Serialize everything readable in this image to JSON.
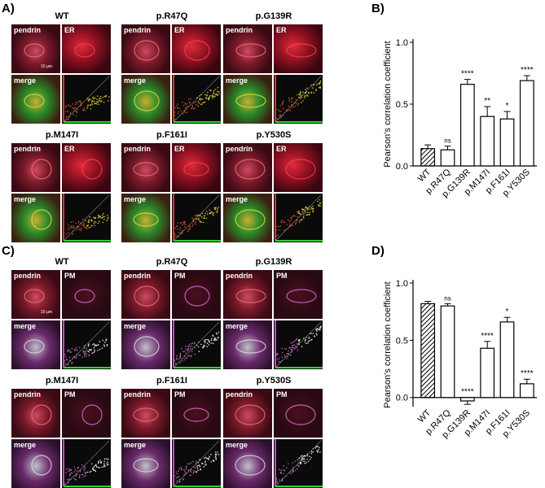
{
  "panels": {
    "A": "A)",
    "B": "B)",
    "C": "C)",
    "D": "D)"
  },
  "panel_a": {
    "marker": "ER",
    "groups": [
      {
        "title": "WT",
        "pendrin": "pendrin",
        "marker": "ER",
        "merge": "merge",
        "scale": "10 µm"
      },
      {
        "title": "p.R47Q",
        "pendrin": "pendrin",
        "marker": "ER",
        "merge": "merge"
      },
      {
        "title": "p.G139R",
        "pendrin": "pendrin",
        "marker": "ER",
        "merge": "merge"
      },
      {
        "title": "p.M147I",
        "pendrin": "pendrin",
        "marker": "ER",
        "merge": "merge"
      },
      {
        "title": "p.F161I",
        "pendrin": "pendrin",
        "marker": "ER",
        "merge": "merge"
      },
      {
        "title": "p.Y530S",
        "pendrin": "pendrin",
        "marker": "ER",
        "merge": "merge"
      }
    ]
  },
  "panel_c": {
    "marker": "PM",
    "groups": [
      {
        "title": "WT",
        "pendrin": "pendrin",
        "marker": "PM",
        "merge": "merge",
        "scale": "10 µm"
      },
      {
        "title": "p.R47Q",
        "pendrin": "pendrin",
        "marker": "PM",
        "merge": "merge"
      },
      {
        "title": "p.G139R",
        "pendrin": "pendrin",
        "marker": "PM",
        "merge": "merge"
      },
      {
        "title": "p.M147I",
        "pendrin": "pendrin",
        "marker": "PM",
        "merge": "merge"
      },
      {
        "title": "p.F161I",
        "pendrin": "pendrin",
        "marker": "PM",
        "merge": "merge"
      },
      {
        "title": "p.Y530S",
        "pendrin": "pendrin",
        "marker": "PM",
        "merge": "merge"
      }
    ]
  },
  "colors": {
    "bg_dark": "#3a0a14",
    "pendrin": "#e0506a",
    "er_red": "#d02030",
    "merge_green": "#30c030",
    "merge_yellow": "#d8c030",
    "pm_magenta": "#c040d0",
    "scatter_bg": "#0a0a0a"
  },
  "chart_data": [
    {
      "type": "bar",
      "panel": "B",
      "categories": [
        "WT",
        "p.R47Q",
        "p.G139R",
        "p.M147I",
        "p.F161I",
        "p.Y530S"
      ],
      "values": [
        0.14,
        0.13,
        0.66,
        0.4,
        0.38,
        0.69
      ],
      "errors": [
        0.03,
        0.03,
        0.04,
        0.08,
        0.06,
        0.04
      ],
      "significance": [
        "",
        "ns",
        "****",
        "**",
        "*",
        "****"
      ],
      "hatched": [
        true,
        false,
        false,
        false,
        false,
        false
      ],
      "ylabel": "Pearson's correlation coefficient",
      "ylim": [
        0.0,
        1.0
      ],
      "yticks": [
        "0.0",
        "0.5",
        "1.0"
      ]
    },
    {
      "type": "bar",
      "panel": "D",
      "categories": [
        "WT",
        "p.R47Q",
        "p.G139R",
        "p.M147I",
        "p.F161I",
        "p.Y530S"
      ],
      "values": [
        0.82,
        0.8,
        -0.03,
        0.43,
        0.66,
        0.12
      ],
      "errors": [
        0.02,
        0.02,
        0.03,
        0.06,
        0.04,
        0.04
      ],
      "significance": [
        "",
        "ns",
        "****",
        "****",
        "*",
        "****"
      ],
      "hatched": [
        true,
        false,
        false,
        false,
        false,
        false
      ],
      "ylabel": "Pearson's correlation coefficient",
      "ylim": [
        -0.08,
        1.0
      ],
      "yticks": [
        "0.0",
        "0.5",
        "1.0"
      ]
    }
  ]
}
